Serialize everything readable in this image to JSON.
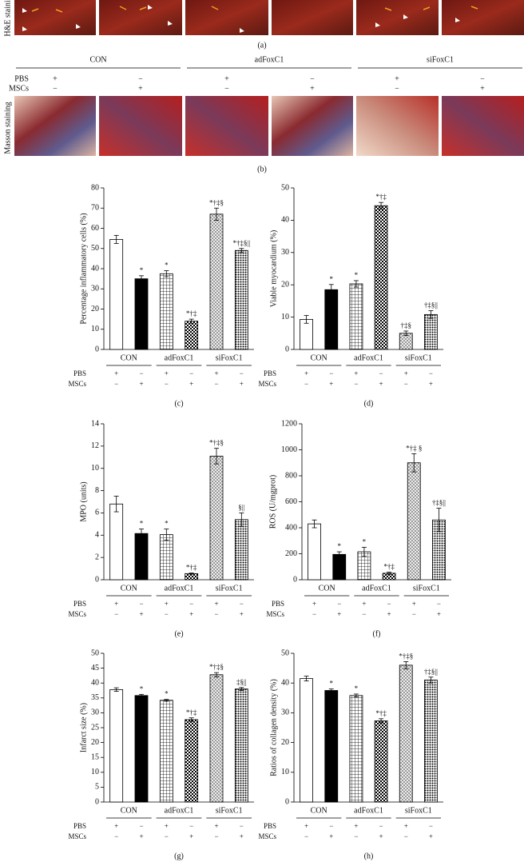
{
  "panel_a": {
    "label": "H&E staining",
    "caption": "(a)"
  },
  "panel_b": {
    "groups": [
      "CON",
      "adFoxC1",
      "siFoxC1"
    ],
    "rows": [
      {
        "name": "PBS",
        "signs": [
          "+",
          "−",
          "+",
          "−",
          "+",
          "−"
        ]
      },
      {
        "name": "MSCs",
        "signs": [
          "−",
          "+",
          "−",
          "+",
          "−",
          "+"
        ]
      }
    ],
    "label": "Masson staining",
    "caption": "(b)"
  },
  "chart_data": [
    {
      "type": "bar",
      "panel": "(c)",
      "y_label": "Percentage inflammatory cells (%)",
      "ylim": [
        0,
        80
      ],
      "yticks": [
        0,
        10,
        20,
        30,
        40,
        50,
        60,
        70,
        80
      ],
      "values": [
        54.5,
        35,
        37.5,
        14,
        67,
        49
      ],
      "errors": [
        2,
        1.5,
        1.5,
        1,
        3,
        1
      ],
      "annotations": [
        null,
        "*",
        "*",
        "*†‡",
        "*†‡§",
        "*†‡§||"
      ],
      "fills": [
        "white",
        "black",
        "grid",
        "checker",
        "crosshatch",
        "dots"
      ],
      "groups": [
        "CON",
        "adFoxC1",
        "siFoxC1"
      ],
      "rows": [
        {
          "name": "PBS",
          "signs": [
            "+",
            "−",
            "+",
            "−",
            "+",
            "−"
          ]
        },
        {
          "name": "MSCs",
          "signs": [
            "−",
            "+",
            "−",
            "+",
            "−",
            "+"
          ]
        }
      ]
    },
    {
      "type": "bar",
      "panel": "(d)",
      "y_label": "Viable myocardium (%)",
      "ylim": [
        0,
        50
      ],
      "yticks": [
        0,
        10,
        20,
        30,
        40,
        50
      ],
      "values": [
        9.3,
        18.5,
        20.3,
        44.5,
        5,
        10.8
      ],
      "errors": [
        1.2,
        1.6,
        1,
        1,
        0.7,
        1.2
      ],
      "annotations": [
        null,
        "*",
        "*",
        "*†‡",
        "†‡§",
        "†‡§||"
      ],
      "fills": [
        "white",
        "black",
        "grid",
        "checker",
        "crosshatch",
        "dots"
      ],
      "groups": [
        "CON",
        "adFoxC1",
        "siFoxC1"
      ],
      "rows": [
        {
          "name": "PBS",
          "signs": [
            "+",
            "−",
            "+",
            "−",
            "+",
            "−"
          ]
        },
        {
          "name": "MSCs",
          "signs": [
            "−",
            "+",
            "−",
            "+",
            "−",
            "+"
          ]
        }
      ]
    },
    {
      "type": "bar",
      "panel": "(e)",
      "y_label": "MPO (units)",
      "ylim": [
        0,
        14
      ],
      "yticks": [
        0,
        2,
        4,
        6,
        8,
        10,
        12,
        14
      ],
      "values": [
        6.8,
        4.15,
        4.05,
        0.55,
        11.1,
        5.4
      ],
      "errors": [
        0.7,
        0.4,
        0.5,
        0.05,
        0.7,
        0.6
      ],
      "annotations": [
        null,
        "*",
        "*",
        "*†‡",
        "*†‡§",
        "§||"
      ],
      "fills": [
        "white",
        "black",
        "grid",
        "checker",
        "crosshatch",
        "dots"
      ],
      "groups": [
        "CON",
        "adFoxC1",
        "siFoxC1"
      ],
      "rows": [
        {
          "name": "PBS",
          "signs": [
            "+",
            "−",
            "+",
            "−",
            "+",
            "−"
          ]
        },
        {
          "name": "MSCs",
          "signs": [
            "−",
            "+",
            "−",
            "+",
            "−",
            "+"
          ]
        }
      ]
    },
    {
      "type": "bar",
      "panel": "(f)",
      "y_label": "ROS (U/mgprot)",
      "ylim": [
        0,
        1200
      ],
      "yticks": [
        0,
        200,
        400,
        600,
        800,
        1000,
        1200
      ],
      "values": [
        430,
        195,
        215,
        50,
        900,
        460
      ],
      "errors": [
        30,
        20,
        35,
        8,
        70,
        90
      ],
      "annotations": [
        null,
        "*",
        "*",
        "*†‡",
        "*†‡ §",
        "†‡§||"
      ],
      "fills": [
        "white",
        "black",
        "grid",
        "checker",
        "crosshatch",
        "dots"
      ],
      "groups": [
        "CON",
        "adFoxC1",
        "siFoxC1"
      ],
      "rows": [
        {
          "name": "PBS",
          "signs": [
            "+",
            "−",
            "+",
            "−",
            "+",
            "−"
          ]
        },
        {
          "name": "MSCs",
          "signs": [
            "−",
            "+",
            "−",
            "+",
            "−",
            "+"
          ]
        }
      ]
    },
    {
      "type": "bar",
      "panel": "(g)",
      "y_label": "Infarct size (%)",
      "ylim": [
        0,
        50
      ],
      "yticks": [
        0,
        5,
        10,
        15,
        20,
        25,
        30,
        35,
        40,
        45,
        50
      ],
      "values": [
        37.8,
        35.8,
        34.2,
        27.7,
        42.8,
        38
      ],
      "errors": [
        0.6,
        0.4,
        0.3,
        0.6,
        0.7,
        0.5
      ],
      "annotations": [
        null,
        "*",
        "*",
        "*†‡",
        "*†‡§",
        "‡§||"
      ],
      "fills": [
        "white",
        "black",
        "grid",
        "checker",
        "crosshatch",
        "dots"
      ],
      "groups": [
        "CON",
        "adFoxC1",
        "siFoxC1"
      ],
      "rows": [
        {
          "name": "PBS",
          "signs": [
            "+",
            "−",
            "+",
            "−",
            "+",
            "−"
          ]
        },
        {
          "name": "MSCs",
          "signs": [
            "−",
            "+",
            "−",
            "+",
            "−",
            "+"
          ]
        }
      ]
    },
    {
      "type": "bar",
      "panel": "(h)",
      "y_label": "Ratios of collagen density (%)",
      "ylim": [
        0,
        50
      ],
      "yticks": [
        0,
        10,
        20,
        30,
        40,
        50
      ],
      "values": [
        41.5,
        37.5,
        35.8,
        27.3,
        46,
        41
      ],
      "errors": [
        0.8,
        0.5,
        0.5,
        0.7,
        1.2,
        1
      ],
      "annotations": [
        null,
        "*",
        "*",
        "*†‡",
        "*†‡§",
        "†‡§||"
      ],
      "fills": [
        "white",
        "black",
        "grid",
        "checker",
        "crosshatch",
        "dots"
      ],
      "groups": [
        "CON",
        "adFoxC1",
        "siFoxC1"
      ],
      "rows": [
        {
          "name": "PBS",
          "signs": [
            "+",
            "−",
            "+",
            "−",
            "+",
            "−"
          ]
        },
        {
          "name": "MSCs",
          "signs": [
            "−",
            "+",
            "−",
            "+",
            "−",
            "+"
          ]
        }
      ]
    }
  ]
}
